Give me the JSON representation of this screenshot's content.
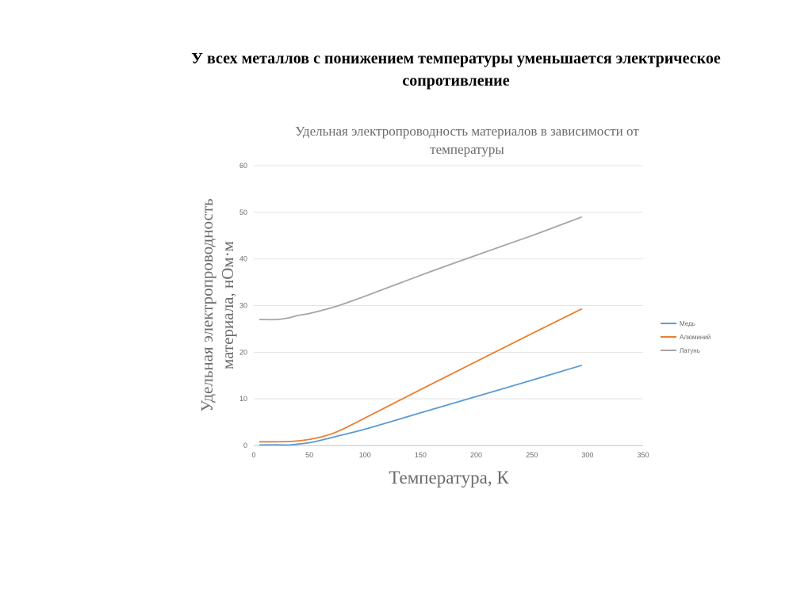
{
  "slide": {
    "heading_line1": "У всех металлов с понижением температуры уменьшается электрическое",
    "heading_line2": "сопротивление"
  },
  "chart_data": {
    "type": "line",
    "title_line1": "Удельная электропроводность материалов в зависимости от",
    "title_line2": "температуры",
    "xlabel": "Температура, К",
    "ylabel_line1": "Удельная электропроводность",
    "ylabel_line2": "материала, нОм·м",
    "xlim": [
      0,
      350
    ],
    "ylim": [
      0,
      60
    ],
    "xticks": [
      0,
      50,
      100,
      150,
      200,
      250,
      300,
      350
    ],
    "yticks": [
      0,
      10,
      20,
      30,
      40,
      50,
      60
    ],
    "grid": "horizontal",
    "legend_position": "right",
    "series": [
      {
        "name": "Медь",
        "color": "#5b9bd5",
        "x": [
          5,
          20,
          30,
          40,
          50,
          60,
          75,
          100,
          150,
          200,
          250,
          295
        ],
        "y": [
          0.1,
          0.15,
          0.1,
          0.3,
          0.6,
          1.1,
          2.0,
          3.5,
          7.0,
          10.5,
          14.0,
          17.2
        ]
      },
      {
        "name": "Алюминий",
        "color": "#ed7d31",
        "x": [
          5,
          20,
          30,
          40,
          50,
          60,
          70,
          80,
          100,
          150,
          200,
          250,
          295
        ],
        "y": [
          0.8,
          0.8,
          0.85,
          1.0,
          1.3,
          1.8,
          2.5,
          3.5,
          5.9,
          12.0,
          18.0,
          24.0,
          29.3
        ]
      },
      {
        "name": "Латунь",
        "color": "#a5a5a5",
        "x": [
          5,
          20,
          30,
          40,
          50,
          60,
          75,
          100,
          150,
          200,
          250,
          295
        ],
        "y": [
          27.0,
          27.0,
          27.3,
          27.9,
          28.3,
          28.9,
          29.9,
          32.0,
          36.5,
          40.8,
          45.0,
          49.0
        ]
      }
    ]
  }
}
